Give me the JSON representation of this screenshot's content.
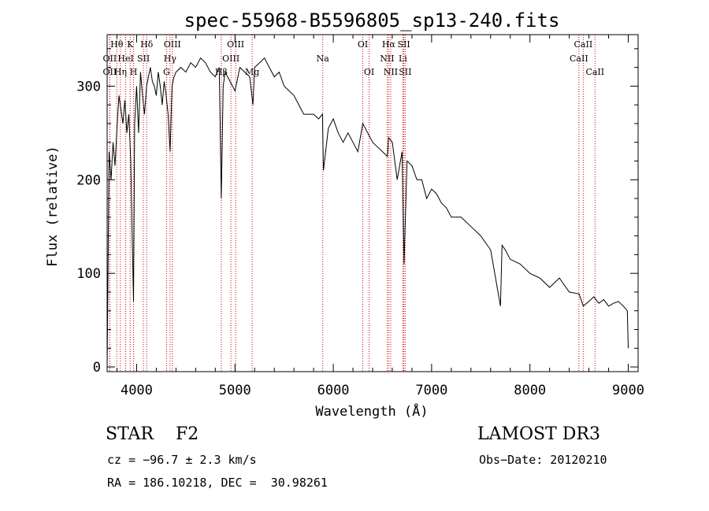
{
  "chart_data": {
    "type": "line",
    "title": "spec-55968-B5596805_sp13-240.fits",
    "xlabel": "Wavelength (Å)",
    "ylabel": "Flux (relative)",
    "xlim": [
      3700,
      9100
    ],
    "ylim": [
      -5,
      355
    ],
    "xticks": [
      4000,
      5000,
      6000,
      7000,
      8000,
      9000
    ],
    "yticks": [
      0,
      100,
      200,
      300
    ],
    "grid": false,
    "line_color": "#000000",
    "marker_color": "#cc0000",
    "x": [
      3700,
      3720,
      3740,
      3760,
      3780,
      3800,
      3820,
      3840,
      3860,
      3880,
      3900,
      3920,
      3940,
      3960,
      3968,
      3980,
      4000,
      4020,
      4040,
      4060,
      4080,
      4101,
      4120,
      4140,
      4160,
      4180,
      4200,
      4220,
      4240,
      4260,
      4280,
      4300,
      4320,
      4340,
      4360,
      4380,
      4400,
      4450,
      4500,
      4550,
      4600,
      4650,
      4700,
      4750,
      4800,
      4840,
      4861,
      4880,
      4900,
      4950,
      5000,
      5050,
      5100,
      5150,
      5183,
      5200,
      5250,
      5300,
      5350,
      5400,
      5450,
      5500,
      5600,
      5700,
      5800,
      5850,
      5890,
      5900,
      5950,
      6000,
      6050,
      6100,
      6150,
      6200,
      6250,
      6300,
      6350,
      6400,
      6450,
      6500,
      6550,
      6563,
      6600,
      6650,
      6700,
      6720,
      6750,
      6800,
      6850,
      6900,
      6950,
      7000,
      7050,
      7100,
      7150,
      7200,
      7300,
      7400,
      7500,
      7600,
      7700,
      7716,
      7750,
      7800,
      7900,
      8000,
      8100,
      8200,
      8300,
      8400,
      8500,
      8542,
      8600,
      8650,
      8700,
      8750,
      8800,
      8850,
      8900,
      8950,
      8990,
      9000
    ],
    "y": [
      0,
      230,
      200,
      240,
      215,
      255,
      290,
      275,
      260,
      285,
      250,
      270,
      220,
      110,
      70,
      260,
      300,
      250,
      315,
      290,
      270,
      300,
      310,
      320,
      305,
      300,
      290,
      315,
      300,
      280,
      305,
      290,
      270,
      230,
      300,
      310,
      315,
      320,
      315,
      325,
      320,
      330,
      325,
      315,
      310,
      320,
      180,
      300,
      315,
      305,
      295,
      320,
      315,
      310,
      280,
      320,
      325,
      330,
      320,
      310,
      315,
      300,
      290,
      270,
      270,
      265,
      270,
      210,
      255,
      265,
      250,
      240,
      250,
      240,
      230,
      260,
      250,
      240,
      235,
      230,
      225,
      245,
      240,
      200,
      230,
      110,
      220,
      215,
      200,
      200,
      180,
      190,
      185,
      175,
      170,
      160,
      160,
      150,
      140,
      125,
      65,
      130,
      125,
      115,
      110,
      100,
      95,
      85,
      95,
      80,
      78,
      65,
      70,
      75,
      68,
      72,
      65,
      68,
      70,
      65,
      60,
      20
    ]
  },
  "lines": [
    {
      "name": "Hθ",
      "wave": 3798,
      "row": 0
    },
    {
      "name": "Hη",
      "wave": 3835,
      "row": 2
    },
    {
      "name": "HeI",
      "wave": 3889,
      "row": 1
    },
    {
      "name": "K",
      "wave": 3934,
      "row": 0
    },
    {
      "name": "H",
      "wave": 3969,
      "row": 2
    },
    {
      "name": "SII",
      "wave": 4069,
      "row": 1
    },
    {
      "name": "Hδ",
      "wave": 4102,
      "row": 0
    },
    {
      "name": "G",
      "wave": 4304,
      "row": 2
    },
    {
      "name": "Hγ",
      "wave": 4340,
      "row": 1
    },
    {
      "name": "OIII",
      "wave": 4363,
      "row": 0
    },
    {
      "name": "Hβ",
      "wave": 4861,
      "row": 2
    },
    {
      "name": "OIII",
      "wave": 4959,
      "row": 1
    },
    {
      "name": "OIII",
      "wave": 5007,
      "row": 0
    },
    {
      "name": "Mg",
      "wave": 5175,
      "row": 2
    },
    {
      "name": "Na",
      "wave": 5893,
      "row": 1
    },
    {
      "name": "OI",
      "wave": 6300,
      "row": 0
    },
    {
      "name": "OI",
      "wave": 6364,
      "row": 2
    },
    {
      "name": "NII",
      "wave": 6548,
      "row": 1
    },
    {
      "name": "NII",
      "wave": 6584,
      "row": 2
    },
    {
      "name": "Hα",
      "wave": 6563,
      "row": 0
    },
    {
      "name": "SII",
      "wave": 6717,
      "row": 0
    },
    {
      "name": "Li",
      "wave": 6708,
      "row": 1
    },
    {
      "name": "SII",
      "wave": 6731,
      "row": 2
    },
    {
      "name": "CaII",
      "wave": 8498,
      "row": 1
    },
    {
      "name": "CaII",
      "wave": 8542,
      "row": 0
    },
    {
      "name": "CaII",
      "wave": 8662,
      "row": 2
    },
    {
      "name": "OII",
      "wave": 3727,
      "row": 2
    },
    {
      "name": "OII",
      "wave": 3727,
      "row": 1
    }
  ],
  "info": {
    "object_class": "STAR    F2",
    "survey": "LAMOST DR3",
    "redshift": "cz = −96.7 ± 2.3 km/s",
    "obs_date": "Obs−Date: 20120210",
    "coords": "RA = 186.10218, DEC =  30.98261"
  }
}
